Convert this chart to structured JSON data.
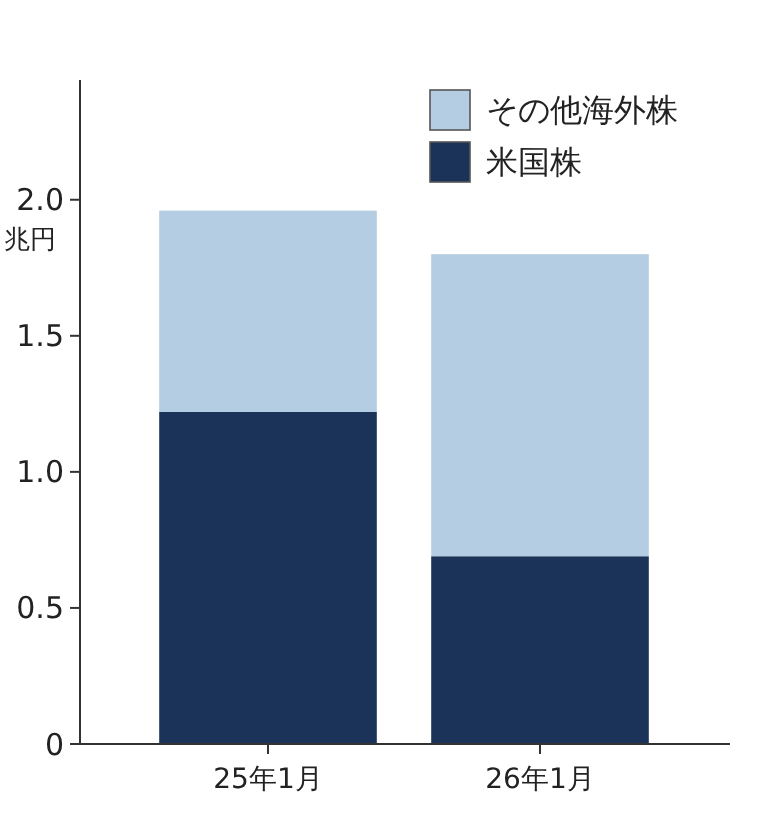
{
  "chart_data": {
    "type": "bar",
    "stacked": true,
    "ylabel": "兆円",
    "categories": [
      "25年1月",
      "26年1月"
    ],
    "series": [
      {
        "name": "米国株",
        "color": "#1b3358",
        "values": [
          1.22,
          0.69
        ]
      },
      {
        "name": "その他海外株",
        "color": "#b5cde3",
        "values": [
          0.74,
          1.11
        ]
      }
    ],
    "ylim": [
      0,
      2.44
    ],
    "yticks": [
      {
        "value": 0,
        "label": "0"
      },
      {
        "value": 0.5,
        "label": "0.5"
      },
      {
        "value": 1,
        "label": "1.0"
      },
      {
        "value": 1.5,
        "label": "1.5"
      },
      {
        "value": 2,
        "label": "2.0"
      }
    ],
    "legend": "top right"
  }
}
